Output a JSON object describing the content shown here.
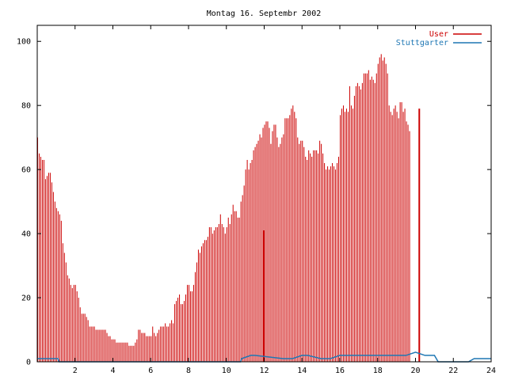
{
  "chart_data": {
    "type": "bar",
    "title": "Montag 16. Septembr 2002",
    "xlabel": "",
    "ylabel": "",
    "xlim": [
      0,
      24
    ],
    "ylim": [
      0,
      105
    ],
    "x_ticks": [
      2,
      4,
      6,
      8,
      10,
      12,
      14,
      16,
      18,
      20,
      22,
      24
    ],
    "y_ticks": [
      0,
      20,
      40,
      60,
      80,
      100
    ],
    "grid": false,
    "legend_position": "top-right",
    "series": [
      {
        "name": "User",
        "color": "#cc0000",
        "step_minutes": 5,
        "values": [
          70,
          65,
          64,
          63,
          63,
          57,
          58,
          59,
          59,
          56,
          53,
          50,
          48,
          47,
          46,
          44,
          37,
          34,
          31,
          27,
          26,
          24,
          23,
          24,
          24,
          22,
          20,
          17,
          15,
          15,
          15,
          14,
          13,
          11,
          11,
          11,
          11,
          10,
          10,
          10,
          10,
          10,
          10,
          10,
          9,
          8,
          8,
          7,
          7,
          7,
          6,
          6,
          6,
          6,
          6,
          6,
          6,
          6,
          5,
          5,
          5,
          5,
          6,
          7,
          10,
          10,
          9,
          9,
          9,
          8,
          8,
          8,
          8,
          11,
          9,
          8,
          9,
          10,
          11,
          11,
          11,
          12,
          11,
          11,
          12,
          13,
          12,
          18,
          19,
          20,
          21,
          18,
          18,
          19,
          21,
          24,
          24,
          22,
          22,
          24,
          28,
          31,
          35,
          34,
          36,
          37,
          38,
          38,
          39,
          42,
          42,
          40,
          41,
          42,
          42,
          43,
          46,
          43,
          42,
          40,
          42,
          45,
          43,
          46,
          49,
          47,
          47,
          45,
          45,
          50,
          52,
          55,
          60,
          63,
          60,
          62,
          63,
          66,
          67,
          68,
          69,
          71,
          70,
          73,
          74,
          75,
          75,
          73,
          68,
          72,
          74,
          74,
          70,
          67,
          68,
          70,
          71,
          76,
          76,
          76,
          77,
          79,
          80,
          78,
          76,
          70,
          68,
          69,
          69,
          67,
          64,
          63,
          66,
          65,
          64,
          66,
          66,
          66,
          65,
          69,
          68,
          65,
          62,
          60,
          61,
          60,
          61,
          62,
          61,
          60,
          62,
          64,
          77,
          79,
          80,
          78,
          79,
          78,
          86,
          80,
          79,
          83,
          86,
          87,
          86,
          85,
          87,
          90,
          90,
          90,
          91,
          88,
          89,
          88,
          87,
          90,
          93,
          95,
          96,
          94,
          95,
          93,
          90,
          80,
          78,
          77,
          79,
          80,
          78,
          76,
          81,
          81,
          78,
          79,
          75,
          74,
          72
        ],
        "spikes": [
          {
            "x": 12.0,
            "value": 41
          },
          {
            "x": 20.2,
            "value": 79
          }
        ]
      },
      {
        "name": "Stuttgarter",
        "color": "#1f77b4",
        "x": [
          0,
          1.1,
          1.15,
          10.75,
          10.8,
          11.3,
          11.5,
          13.0,
          13.5,
          14.0,
          14.3,
          15.0,
          15.5,
          16.0,
          17.0,
          18.0,
          18.5,
          19.0,
          19.5,
          20.0,
          20.5,
          21.0,
          21.2,
          22.8,
          23.1,
          24.0
        ],
        "values": [
          1,
          1,
          0,
          0,
          1,
          2,
          2,
          1,
          1,
          2,
          2,
          1,
          1,
          2,
          2,
          2,
          2,
          2,
          2,
          3,
          2,
          2,
          0,
          0,
          1,
          1
        ]
      }
    ]
  }
}
